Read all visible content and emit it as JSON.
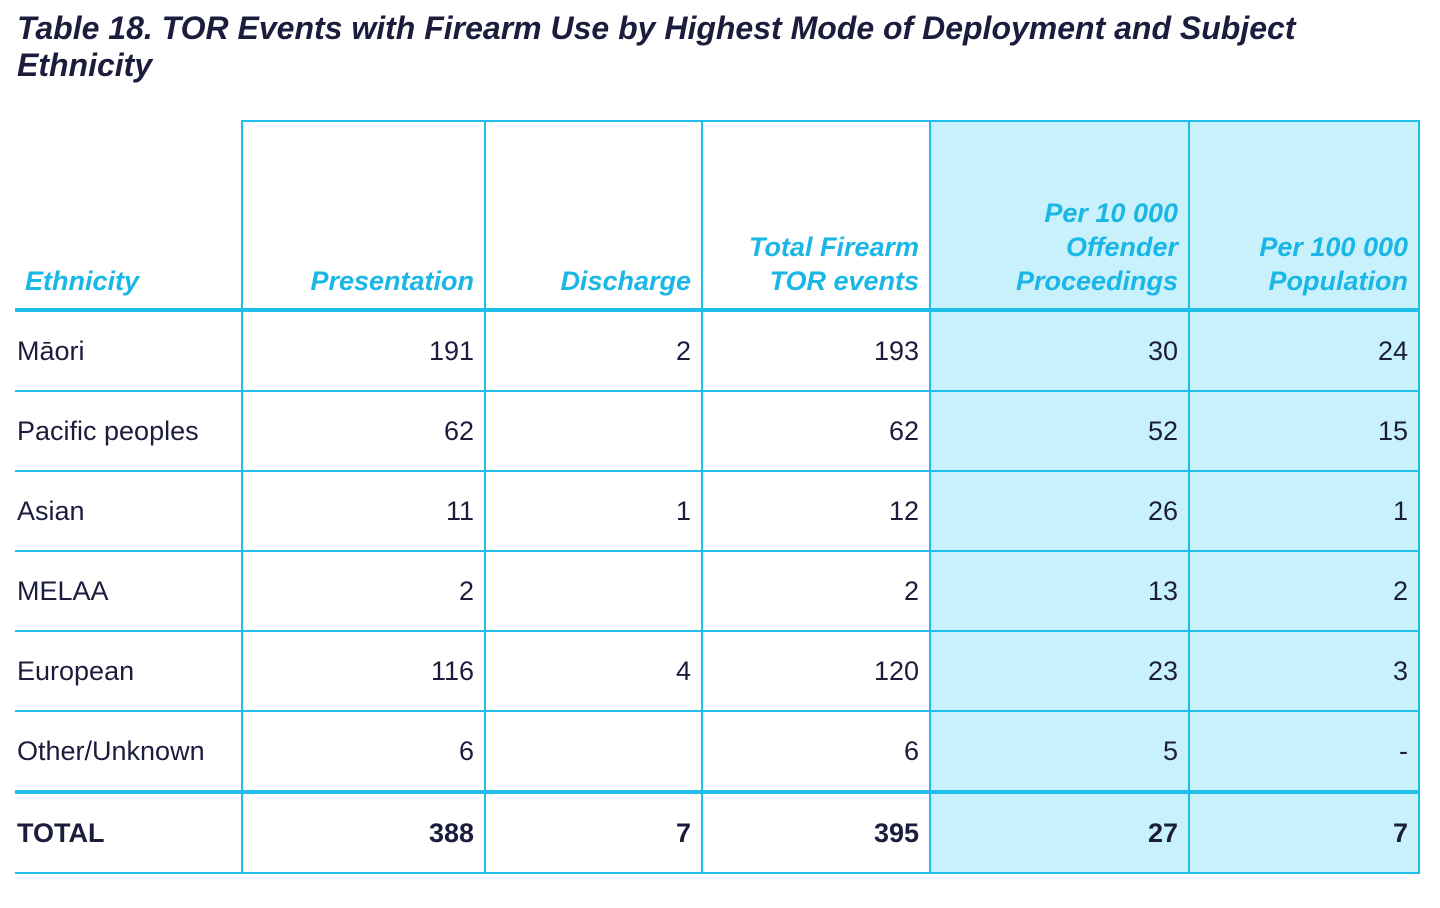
{
  "title": "Table 18. TOR Events with Firearm Use by Highest Mode of Deployment and Subject Ethnicity",
  "columns": [
    "Ethnicity",
    "Presentation",
    "Discharge",
    "Total Firearm TOR events",
    "Per 10 000 Offender Proceedings",
    "Per 100 000 Population"
  ],
  "rows": [
    [
      "Māori",
      "191",
      "2",
      "193",
      "30",
      "24"
    ],
    [
      "Pacific peoples",
      "62",
      "",
      "62",
      "52",
      "15"
    ],
    [
      "Asian",
      "11",
      "1",
      "12",
      "26",
      "1"
    ],
    [
      "MELAA",
      "2",
      "",
      "2",
      "13",
      "2"
    ],
    [
      "European",
      "116",
      "4",
      "120",
      "23",
      "3"
    ],
    [
      "Other/Unknown",
      "6",
      "",
      "6",
      "5",
      "-"
    ]
  ],
  "total": [
    "TOTAL",
    "388",
    "7",
    "395",
    "27",
    "7"
  ],
  "colors": {
    "border": "#1fbfe9",
    "header_text": "#1ab6e6",
    "shade": "#c9f1fc",
    "text": "#1c1d3d"
  }
}
